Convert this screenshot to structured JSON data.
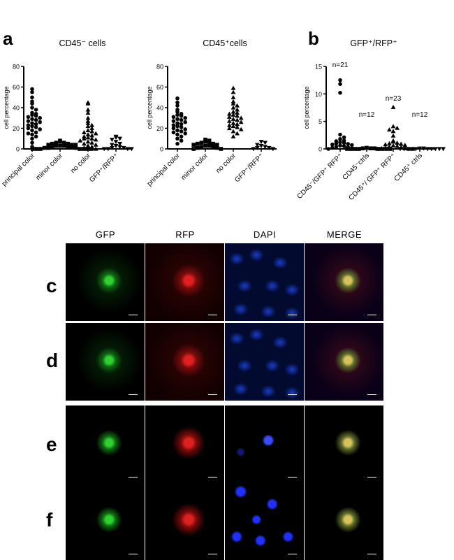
{
  "panel_a": {
    "letter": "a"
  },
  "panel_b": {
    "letter": "b"
  },
  "chart_data": [
    {
      "type": "scatter",
      "title": "CD45⁻ cells",
      "ylabel": "cell percentage",
      "ylim": [
        0,
        80
      ],
      "yticks": [
        "0",
        "20",
        "40",
        "60",
        "80"
      ],
      "categories": [
        "principal color",
        "minor color",
        "no color",
        "GFP⁺/RFP⁺"
      ],
      "markers": [
        "circle",
        "square",
        "triangle",
        "triangle-down"
      ],
      "series": [
        {
          "values": [
            58,
            55,
            50,
            46,
            44,
            40,
            38,
            35,
            34,
            33,
            32,
            31,
            30,
            29,
            28,
            27,
            26,
            25,
            24,
            23,
            22,
            21,
            20,
            19,
            18,
            16,
            15,
            14,
            12,
            10,
            6,
            2
          ]
        },
        {
          "values": [
            8,
            7,
            6,
            6,
            5,
            5,
            4,
            4,
            4,
            3,
            3,
            3,
            2,
            2,
            2,
            1,
            1,
            1,
            0,
            0,
            0,
            0,
            0,
            0,
            0
          ]
        },
        {
          "values": [
            45,
            44,
            38,
            35,
            30,
            27,
            25,
            23,
            22,
            20,
            18,
            17,
            16,
            15,
            14,
            13,
            12,
            11,
            10,
            10,
            9,
            8,
            7,
            6,
            5,
            4,
            3,
            2,
            1,
            0
          ]
        },
        {
          "values": [
            12,
            11,
            10,
            9,
            7,
            5,
            4,
            3,
            2,
            1,
            1,
            0,
            0,
            0,
            0
          ]
        }
      ]
    },
    {
      "type": "scatter",
      "title": "CD45⁺cells",
      "ylabel": "cell percentage",
      "ylim": [
        0,
        80
      ],
      "yticks": [
        "0",
        "20",
        "40",
        "60",
        "80"
      ],
      "categories": [
        "principal color",
        "minor color",
        "no color",
        "GFP⁺/RFP⁺"
      ],
      "markers": [
        "circle",
        "square",
        "triangle",
        "triangle-down"
      ],
      "series": [
        {
          "values": [
            49,
            45,
            42,
            38,
            36,
            34,
            33,
            32,
            31,
            30,
            29,
            28,
            27,
            26,
            25,
            24,
            23,
            22,
            21,
            20,
            19,
            18,
            17,
            16,
            15,
            14,
            12,
            10,
            8,
            5
          ]
        },
        {
          "values": [
            9,
            8,
            7,
            6,
            6,
            5,
            5,
            4,
            4,
            3,
            3,
            2,
            2,
            1,
            1,
            0,
            0
          ]
        },
        {
          "values": [
            59,
            55,
            50,
            46,
            44,
            42,
            40,
            38,
            36,
            35,
            34,
            33,
            32,
            31,
            30,
            29,
            28,
            27,
            26,
            25,
            24,
            23,
            22,
            21,
            20,
            19,
            17,
            15,
            12
          ]
        },
        {
          "values": [
            7,
            6,
            4,
            3,
            2,
            1,
            1,
            0,
            0
          ]
        }
      ]
    },
    {
      "type": "scatter",
      "title": "GFP⁺/RFP⁺",
      "ylabel": "cell percentage",
      "ylim": [
        0,
        15
      ],
      "yticks": [
        "0",
        "5",
        "10",
        "15"
      ],
      "categories": [
        "CD45⁻/GFP⁺ RFP⁺",
        "CD45⁻ctrls",
        "CD45⁺/ GFP⁺ RFP⁺",
        "CD45⁺ ctrls"
      ],
      "annotations": [
        "n=21",
        "n=12",
        "n=23",
        "n=12"
      ],
      "markers": [
        "circle",
        "square",
        "triangle",
        "triangle-down"
      ],
      "series": [
        {
          "values": [
            12.5,
            11.8,
            10.2,
            2.6,
            2.1,
            1.8,
            1.5,
            1.4,
            1.2,
            1.1,
            1.0,
            0.9,
            0.8,
            0.7,
            0.6,
            0.5,
            0.4,
            0.3,
            0.2,
            0.1,
            0.0
          ]
        },
        {
          "values": [
            0.2,
            0.1,
            0.1,
            0.1,
            0,
            0,
            0,
            0,
            0,
            0,
            0,
            0
          ]
        },
        {
          "values": [
            7.6,
            4.1,
            3.8,
            3.5,
            3.2,
            2.4,
            1.5,
            1.3,
            1.1,
            1.0,
            0.9,
            0.8,
            0.7,
            0.6,
            0.5,
            0.4,
            0.3,
            0.2,
            0.1,
            0.1,
            0,
            0,
            0
          ]
        },
        {
          "values": [
            0.1,
            0.1,
            0,
            0,
            0,
            0,
            0,
            0,
            0,
            0,
            0,
            0
          ]
        }
      ]
    }
  ],
  "micrographs": {
    "columns": [
      "GFP",
      "RFP",
      "DAPI",
      "MERGE"
    ],
    "rows": [
      {
        "letter": "c"
      },
      {
        "letter": "d"
      },
      {
        "letter": "e"
      },
      {
        "letter": "f"
      }
    ]
  }
}
